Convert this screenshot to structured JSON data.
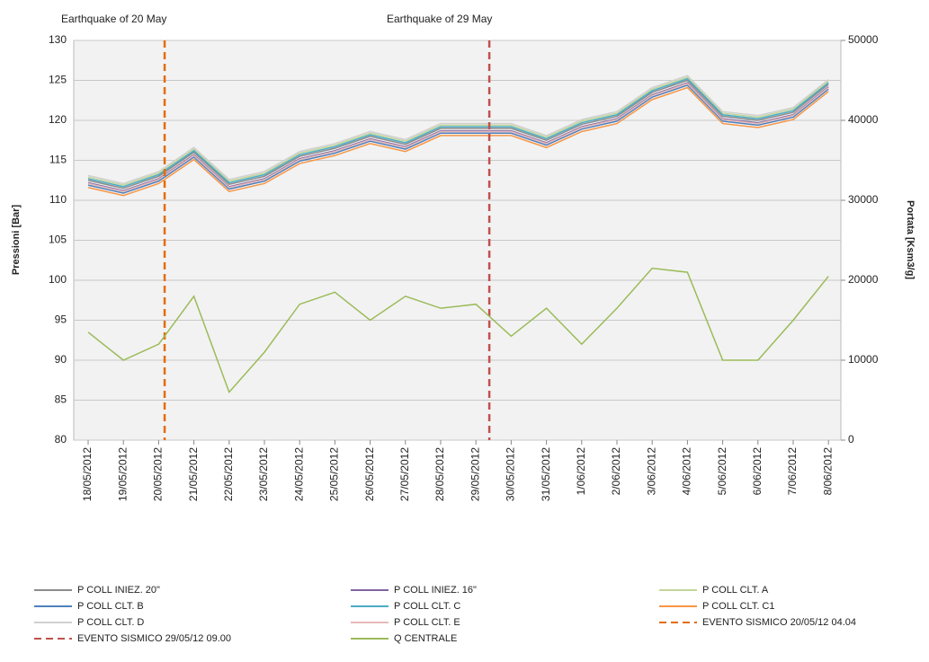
{
  "chart_data": {
    "type": "line",
    "annotations": [
      "Earthquake of 20 May",
      "Earthquake of 29 May"
    ],
    "y_label": "Pressioni [Bar]",
    "y2_label": "Portata [Ksm3/g]",
    "categories": [
      "18/05/2012",
      "19/05/2012",
      "20/05/2012",
      "21/05/2012",
      "22/05/2012",
      "23/05/2012",
      "24/05/2012",
      "25/05/2012",
      "26/05/2012",
      "27/05/2012",
      "28/05/2012",
      "29/05/2012",
      "30/05/2012",
      "31/05/2012",
      "1/06/2012",
      "2/06/2012",
      "3/06/2012",
      "4/06/2012",
      "5/06/2012",
      "6/06/2012",
      "7/06/2012",
      "8/06/2012"
    ],
    "ylim": [
      80,
      130
    ],
    "yticks": [
      80,
      85,
      90,
      95,
      100,
      105,
      110,
      115,
      120,
      125,
      130
    ],
    "y2lim": [
      0,
      50000
    ],
    "y2ticks": [
      0,
      10000,
      20000,
      30000,
      40000,
      50000
    ],
    "grid": true,
    "series": [
      {
        "name": "P COLL INIEZ. 20\"",
        "color": "#8c8c8c",
        "values": [
          112.5,
          111.5,
          113,
          116,
          112,
          113,
          115.5,
          116.5,
          118,
          117,
          119,
          119,
          119,
          117.5,
          119.5,
          120.5,
          123.5,
          125,
          120.5,
          120,
          121,
          124.5
        ]
      },
      {
        "name": "P COLL INIEZ. 16\"",
        "color": "#8064a2",
        "values": [
          112.2,
          111.2,
          112.7,
          115.7,
          111.7,
          112.7,
          115.2,
          116.2,
          117.7,
          116.7,
          118.7,
          118.7,
          118.7,
          117.2,
          119.2,
          120.2,
          123.2,
          124.7,
          120.2,
          119.7,
          120.7,
          124.2
        ]
      },
      {
        "name": "P COLL CLT. A",
        "color": "#c3d69b",
        "values": [
          112.9,
          111.9,
          113.4,
          116.4,
          112.4,
          113.4,
          115.9,
          116.9,
          118.4,
          117.4,
          119.4,
          119.4,
          119.4,
          117.9,
          119.9,
          120.9,
          123.9,
          125.4,
          120.9,
          120.4,
          121.4,
          124.9
        ]
      },
      {
        "name": "P COLL CLT. B",
        "color": "#4f81bd",
        "values": [
          111.9,
          110.9,
          112.4,
          115.4,
          111.4,
          112.4,
          114.9,
          115.9,
          117.4,
          116.4,
          118.4,
          118.4,
          118.4,
          116.9,
          118.9,
          119.9,
          122.9,
          124.4,
          119.9,
          119.4,
          120.4,
          123.9
        ]
      },
      {
        "name": "P COLL CLT. C",
        "color": "#4bacc6",
        "values": [
          112.7,
          111.7,
          113.2,
          116.2,
          112.2,
          113.2,
          115.7,
          116.7,
          118.2,
          117.2,
          119.2,
          119.2,
          119.2,
          117.7,
          119.7,
          120.7,
          123.7,
          125.2,
          120.7,
          120.2,
          121.2,
          124.7
        ]
      },
      {
        "name": "P COLL CLT. C1",
        "color": "#f79646",
        "values": [
          111.6,
          110.6,
          112.1,
          115.1,
          111.1,
          112.1,
          114.6,
          115.6,
          117.1,
          116.1,
          118.1,
          118.1,
          118.1,
          116.6,
          118.6,
          119.6,
          122.6,
          124.1,
          119.6,
          119.1,
          120.1,
          123.6
        ]
      },
      {
        "name": "P COLL CLT. D",
        "color": "#d0d0d0",
        "values": [
          113.1,
          112.1,
          113.6,
          116.6,
          112.6,
          113.6,
          116.1,
          117.1,
          118.6,
          117.6,
          119.6,
          119.6,
          119.6,
          118.1,
          120.1,
          121.1,
          124.1,
          125.6,
          121.1,
          120.6,
          121.6,
          125.1
        ]
      },
      {
        "name": "P COLL CLT. E",
        "color": "#e6b9b8",
        "values": [
          112.1,
          111.1,
          112.6,
          115.6,
          111.6,
          112.6,
          115.1,
          116.1,
          117.6,
          116.6,
          118.6,
          118.6,
          118.6,
          117.1,
          119.1,
          120.1,
          123.1,
          124.6,
          120.1,
          119.6,
          120.6,
          124.1
        ]
      },
      {
        "name": "EVENTO SISMICO 20/05/12 04.04",
        "color": "#e46c0a",
        "dashed": true,
        "x": 2.17
      },
      {
        "name": "EVENTO SISMICO 29/05/12 09.00",
        "color": "#c0504d",
        "dashed": true,
        "x": 11.38
      },
      {
        "name": "Q CENTRALE",
        "color": "#9bbb59",
        "axis": "y2",
        "values": [
          13500,
          10000,
          12000,
          18000,
          6000,
          11000,
          17000,
          18500,
          15000,
          18000,
          16500,
          17000,
          13000,
          16500,
          12000,
          16500,
          21500,
          21000,
          10000,
          10000,
          15000,
          20500
        ]
      }
    ]
  }
}
